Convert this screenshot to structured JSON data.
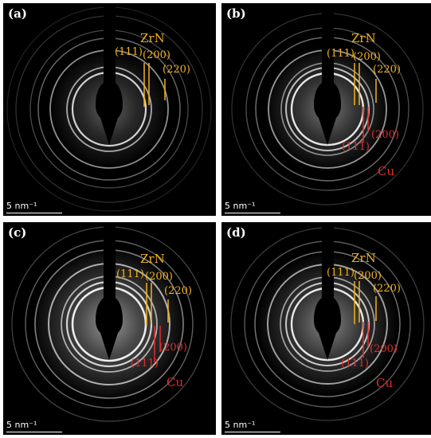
{
  "panels": [
    {
      "label": "(a)",
      "scale": "5 nm⁻¹",
      "zrn_title": "ZrN",
      "zrn_indices": [
        "(111)",
        "(200)",
        "(220)"
      ],
      "cu_title": "",
      "cu_indices": []
    },
    {
      "label": "(b)",
      "scale": "5 nm⁻¹",
      "zrn_title": "ZrN",
      "zrn_indices": [
        "(111)",
        "(200)",
        "(220)"
      ],
      "cu_title": "Cu",
      "cu_indices": [
        "(111)",
        "(200)"
      ]
    },
    {
      "label": "(c)",
      "scale": "5 nm⁻¹",
      "zrn_title": "ZrN",
      "zrn_indices": [
        "(111)",
        "(200)",
        "(220)"
      ],
      "cu_title": "Cu",
      "cu_indices": [
        "(111)",
        "(200)"
      ]
    },
    {
      "label": "(d)",
      "scale": "5 nm⁻¹",
      "zrn_title": "ZrN",
      "zrn_indices": [
        "(111)",
        "(200)",
        "(220)"
      ],
      "cu_title": "Cu",
      "cu_indices": [
        "(111)",
        "(200)"
      ]
    }
  ],
  "colors": {
    "zrn": "#f2b21b",
    "cu": "#e32b2b",
    "background": "#000000",
    "rings": "#ffffff"
  }
}
